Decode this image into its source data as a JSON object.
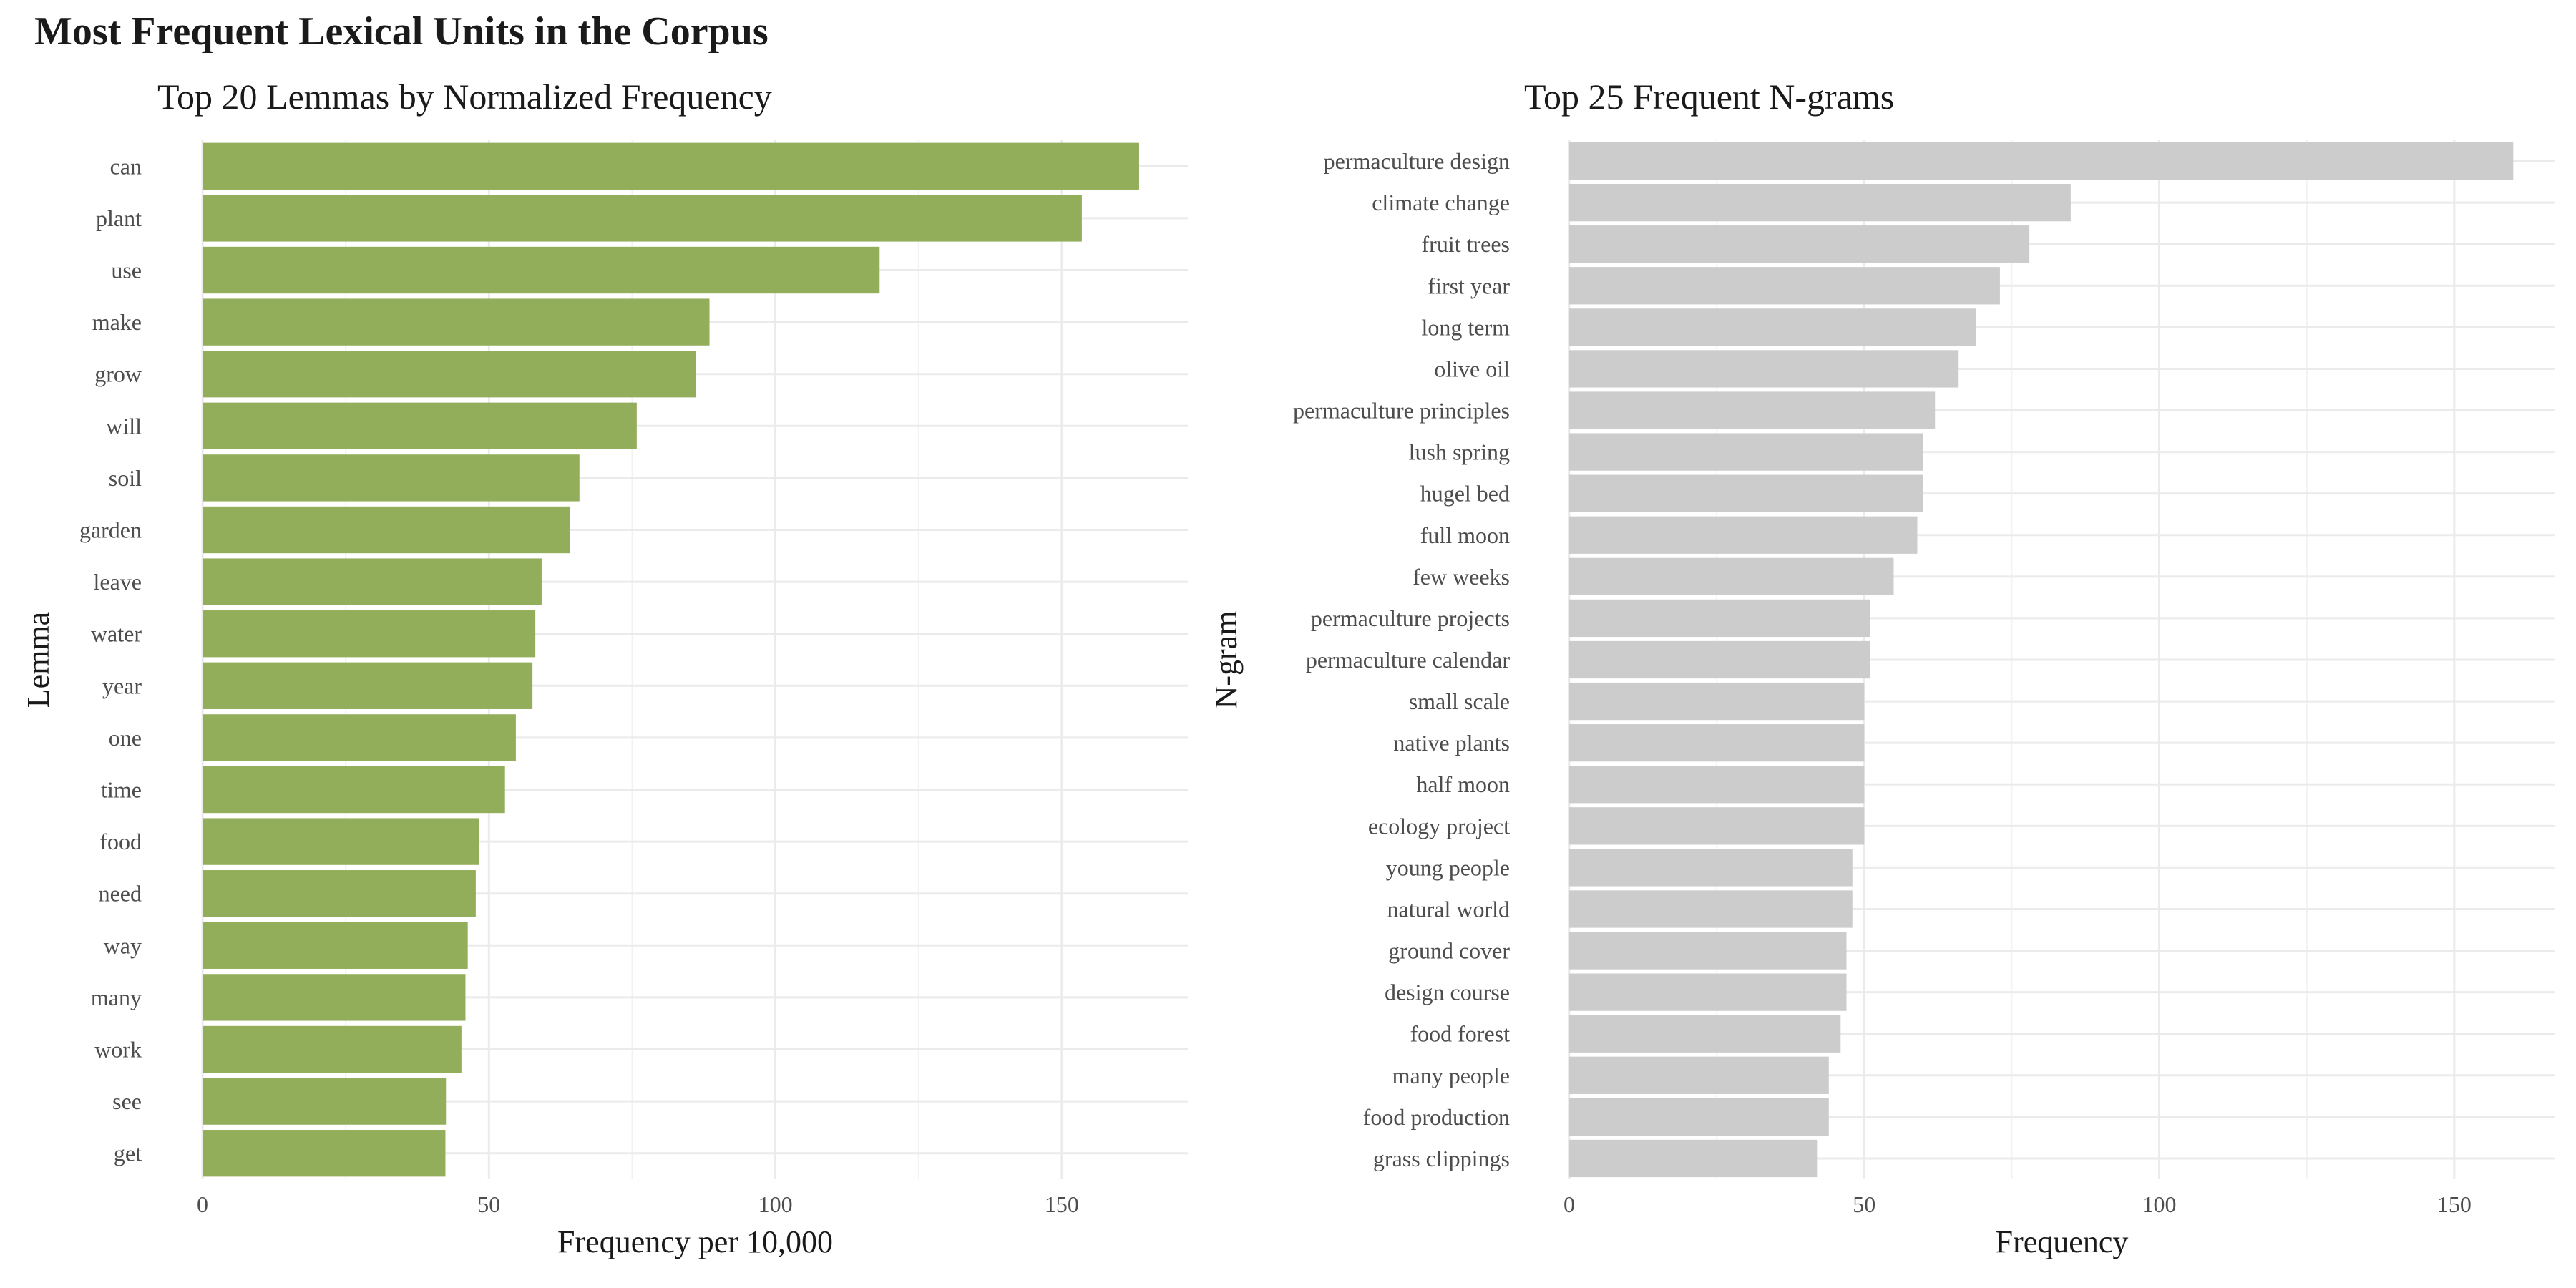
{
  "title": "Most Frequent Lexical Units in the Corpus",
  "chart_data": [
    {
      "type": "bar",
      "orientation": "horizontal",
      "title": "Top 20 Lemmas by Normalized Frequency",
      "xlabel": "Frequency per 10,000",
      "ylabel": "Lemma",
      "xlim": [
        0,
        172
      ],
      "xticks": [
        0,
        50,
        100,
        150
      ],
      "grid": true,
      "color": "#93AE5A",
      "categories": [
        "can",
        "plant",
        "use",
        "make",
        "grow",
        "will",
        "soil",
        "garden",
        "leave",
        "water",
        "year",
        "one",
        "time",
        "food",
        "need",
        "way",
        "many",
        "work",
        "see",
        "get"
      ],
      "values": [
        163.5,
        153.5,
        118.2,
        88.5,
        86.1,
        75.8,
        65.8,
        64.2,
        59.2,
        58.1,
        57.6,
        54.7,
        52.8,
        48.3,
        47.7,
        46.3,
        45.9,
        45.2,
        42.5,
        42.4
      ]
    },
    {
      "type": "bar",
      "orientation": "horizontal",
      "title": "Top 25 Frequent N-grams",
      "xlabel": "Frequency",
      "ylabel": "N-gram",
      "xlim": [
        0,
        167
      ],
      "xticks": [
        0,
        50,
        100,
        150
      ],
      "grid": true,
      "color": "#CCCCCC",
      "categories": [
        "permaculture design",
        "climate change",
        "fruit trees",
        "first year",
        "long term",
        "olive oil",
        "permaculture principles",
        "lush spring",
        "hugel bed",
        "full moon",
        "few weeks",
        "permaculture projects",
        "permaculture calendar",
        "small scale",
        "native plants",
        "half moon",
        "ecology project",
        "young people",
        "natural world",
        "ground cover",
        "design course",
        "food forest",
        "many people",
        "food production",
        "grass clippings"
      ],
      "values": [
        160,
        85,
        78,
        73,
        69,
        66,
        62,
        60,
        60,
        59,
        55,
        51,
        51,
        50,
        50,
        50,
        50,
        48,
        48,
        47,
        47,
        46,
        44,
        44,
        42
      ]
    }
  ]
}
